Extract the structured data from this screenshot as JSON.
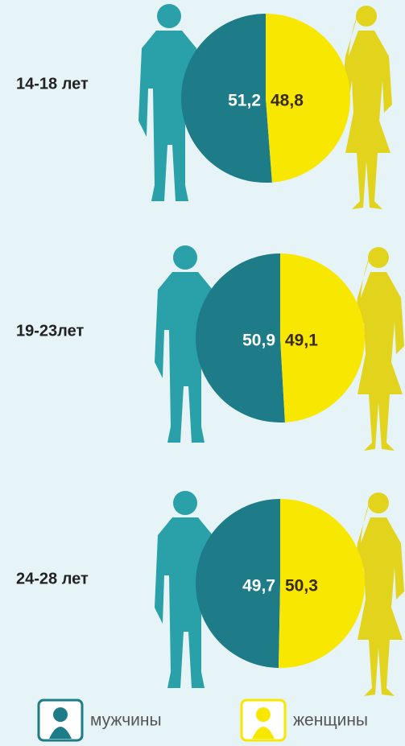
{
  "legend": [
    {
      "name": "мужчины",
      "color": "#1d7c87"
    },
    {
      "name": "женщины",
      "color": "#f8e700"
    }
  ],
  "chart_data": [
    {
      "type": "pie",
      "title": "14-18 лет",
      "values": [
        51.2,
        48.8
      ],
      "value_labels": [
        "51,2",
        "48,8"
      ]
    },
    {
      "type": "pie",
      "title": "19-23лет",
      "values": [
        50.9,
        49.1
      ],
      "value_labels": [
        "50,9",
        "49,1"
      ]
    },
    {
      "type": "pie",
      "title": "24-28 лет",
      "values": [
        49.7,
        50.3
      ],
      "value_labels": [
        "49,7",
        "50,3"
      ]
    }
  ]
}
